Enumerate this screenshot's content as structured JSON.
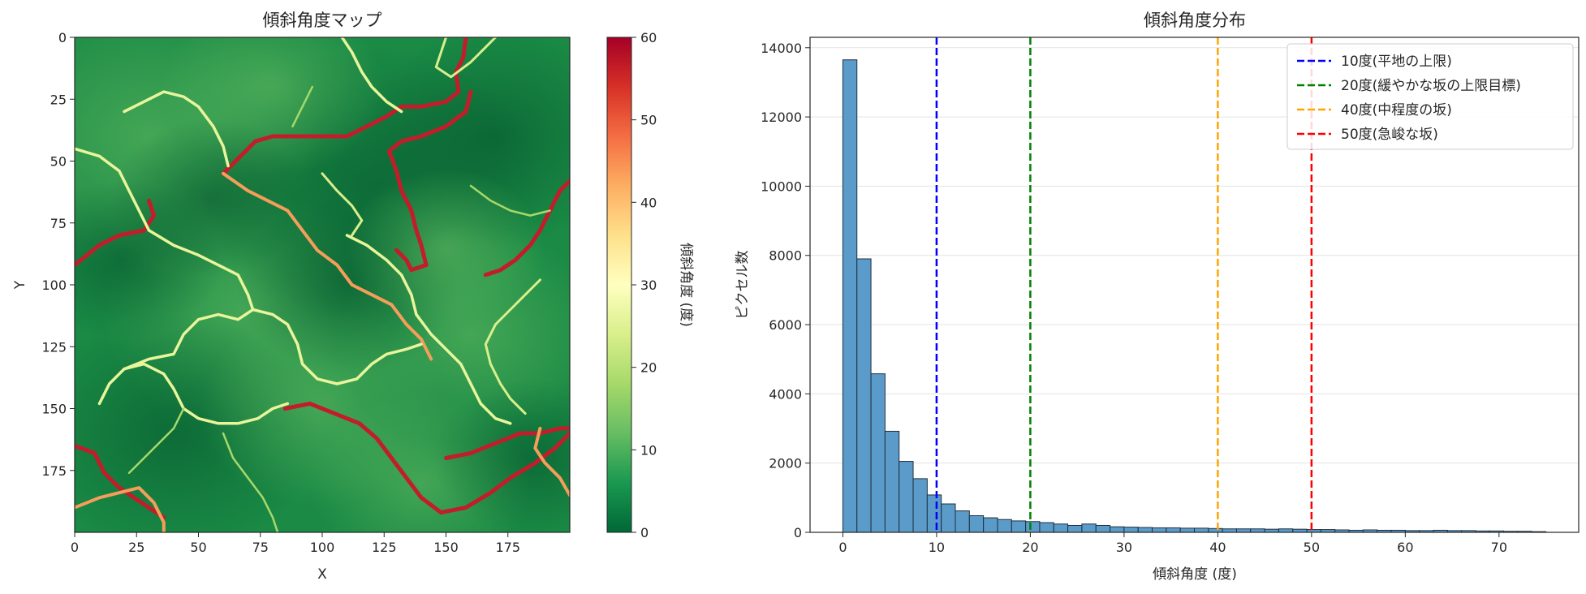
{
  "chart_data": [
    {
      "type": "heatmap",
      "title": "傾斜角度マップ",
      "xlabel": "X",
      "ylabel": "Y",
      "xlim": [
        0,
        200
      ],
      "ylim": [
        200,
        0
      ],
      "x_ticks": [
        0,
        25,
        50,
        75,
        100,
        125,
        150,
        175
      ],
      "y_ticks": [
        0,
        25,
        50,
        75,
        100,
        125,
        150,
        175
      ],
      "colormap": "RdYlGn_r",
      "colormap_stops": [
        "#006837",
        "#1a9850",
        "#66bd63",
        "#a6d96a",
        "#d9ef8b",
        "#ffffbf",
        "#fee08b",
        "#fdae61",
        "#f46d43",
        "#d73027",
        "#a50026"
      ],
      "colorbar": {
        "label": "傾斜角度 (度)",
        "range": [
          0,
          60
        ],
        "ticks": [
          0,
          10,
          20,
          30,
          40,
          50,
          60
        ]
      }
    },
    {
      "type": "bar",
      "title": "傾斜角度分布",
      "xlabel": "傾斜角度 (度)",
      "ylabel": "ピクセル数",
      "xlim": [
        -3.5,
        78.5
      ],
      "ylim": [
        0,
        14300
      ],
      "x_ticks": [
        0,
        10,
        20,
        30,
        40,
        50,
        60,
        70
      ],
      "y_ticks": [
        0,
        2000,
        4000,
        6000,
        8000,
        10000,
        12000,
        14000
      ],
      "grid": "y",
      "bar_color": "#5b9bc9",
      "bin_width": 1.5,
      "bin_start": 0,
      "values": [
        13650,
        7900,
        4580,
        2920,
        2050,
        1550,
        1080,
        820,
        620,
        480,
        420,
        370,
        330,
        310,
        280,
        240,
        200,
        240,
        200,
        160,
        150,
        140,
        130,
        130,
        120,
        120,
        110,
        100,
        100,
        100,
        90,
        100,
        90,
        80,
        80,
        70,
        60,
        70,
        60,
        60,
        50,
        50,
        60,
        50,
        50,
        40,
        40,
        30,
        30,
        20
      ],
      "legend_position": "top-right",
      "vlines": [
        {
          "x": 10,
          "color": "#0000ff",
          "label": "10度(平地の上限)"
        },
        {
          "x": 20,
          "color": "#008000",
          "label": "20度(緩やかな坂の上限目標)"
        },
        {
          "x": 40,
          "color": "#ffa500",
          "label": "40度(中程度の坂)"
        },
        {
          "x": 50,
          "color": "#ff0000",
          "label": "50度(急峻な坂)"
        }
      ]
    }
  ]
}
